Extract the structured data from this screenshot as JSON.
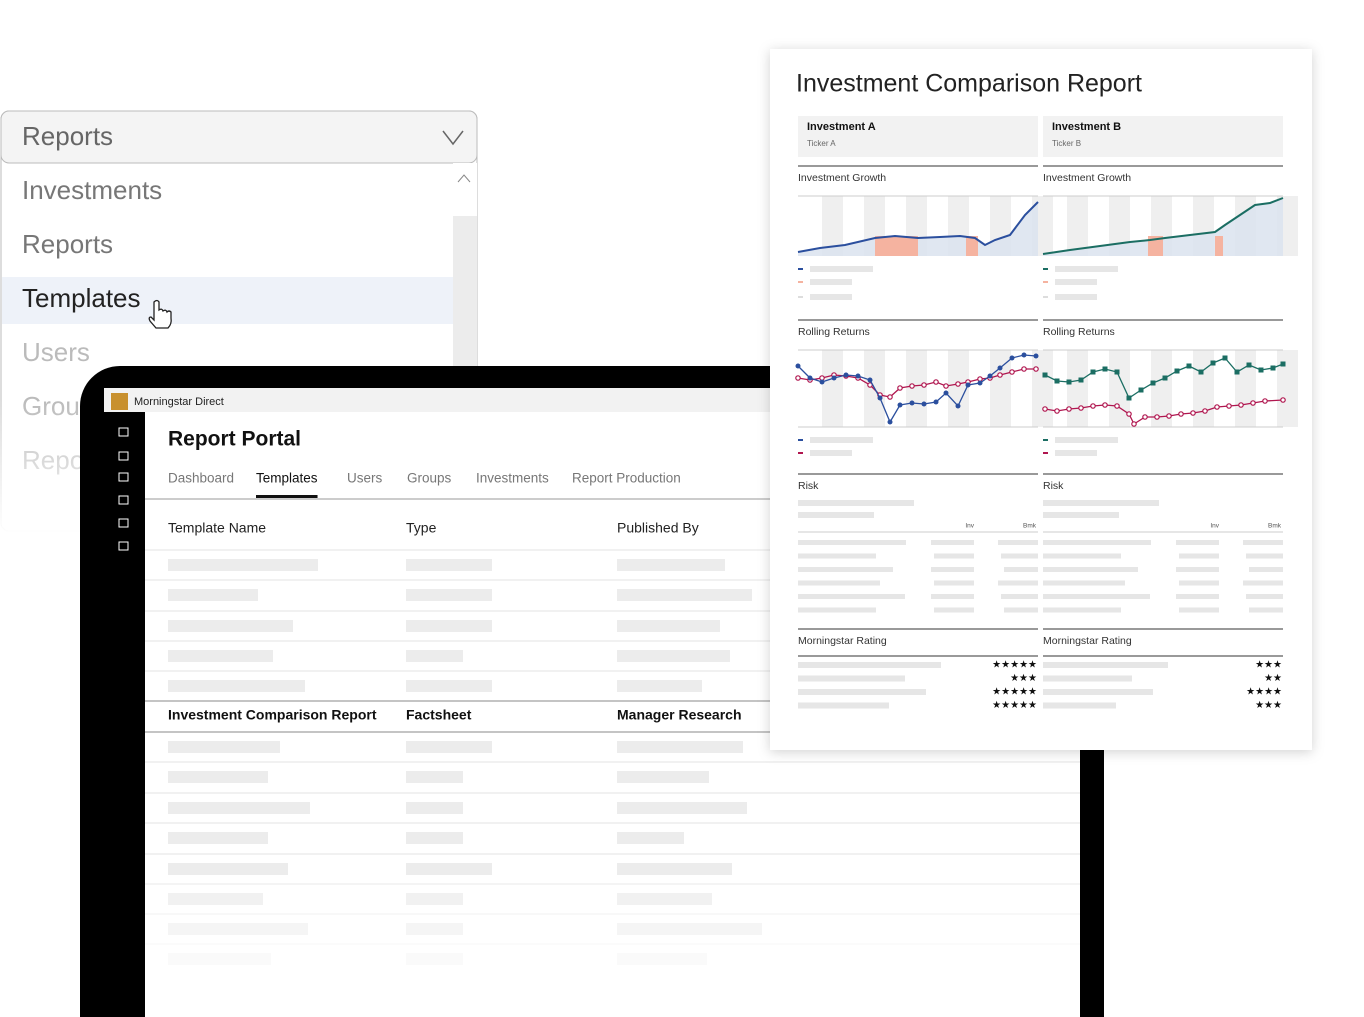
{
  "dropdown": {
    "selected": "Reports",
    "options": [
      "Investments",
      "Reports",
      "Templates",
      "Users",
      "Groups",
      "Reports"
    ]
  },
  "app": {
    "brand": "Morningstar Direct",
    "title": "Report Portal",
    "tabs": [
      "Dashboard",
      "Templates",
      "Users",
      "Groups",
      "Investments",
      "Report Production"
    ],
    "columns": [
      "Template Name",
      "Type",
      "Published By"
    ],
    "highlighted_row": [
      "Investment Comparison Report",
      "Factsheet",
      "Manager Research"
    ]
  },
  "report": {
    "title": "Investment Comparison Report",
    "investments": [
      {
        "name": "Investment A",
        "ticker": "Ticker A",
        "ratings": [
          "★★★★★",
          "★★★",
          "★★★★★",
          "★★★★★"
        ]
      },
      {
        "name": "Investment B",
        "ticker": "Ticker B",
        "ratings": [
          "★★★",
          "★★",
          "★★★★",
          "★★★"
        ]
      }
    ],
    "sections": [
      "Investment Growth",
      "Rolling Returns",
      "Risk",
      "Morningstar Rating"
    ],
    "risk_columns": [
      "Inv",
      "Bmk"
    ]
  }
}
